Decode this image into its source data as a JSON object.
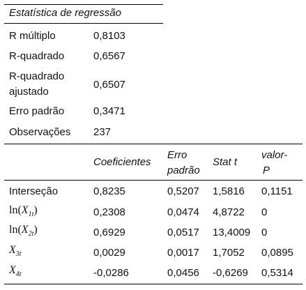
{
  "regression_stats": {
    "title": "Estatística de regressão",
    "rows": [
      {
        "label": "R múltiplo",
        "value": "0,8103"
      },
      {
        "label": "R-quadrado",
        "value": "0,6567"
      },
      {
        "label_line1": "R-quadrado",
        "label_line2": "ajustado",
        "value": "0,6507"
      },
      {
        "label": "Erro padrão",
        "value": "0,3471"
      },
      {
        "label": "Observações",
        "value": "237"
      }
    ]
  },
  "coef_table": {
    "headers": {
      "coef": "Coeficientes",
      "se_line1": "Erro",
      "se_line2": "padrão",
      "t": "Stat t",
      "p_line1": "valor-",
      "p_line2": "P"
    },
    "rows": [
      {
        "var_text": "Interseção",
        "coef": "0,8235",
        "se": "0,5207",
        "t": "1,5816",
        "p": "0,1151"
      },
      {
        "var_func": "ln",
        "var_base": "X",
        "var_sub": "1t",
        "coef": "0,2308",
        "se": "0,0474",
        "t": "4,8722",
        "p": "0"
      },
      {
        "var_func": "ln",
        "var_base": "X",
        "var_sub": "2t",
        "coef": "0,6929",
        "se": "0,0517",
        "t": "13,4009",
        "p": "0"
      },
      {
        "var_base": "X",
        "var_sub": "3t",
        "coef": "0,0029",
        "se": "0,0017",
        "t": "1,7052",
        "p": "0,0895"
      },
      {
        "var_base": "X",
        "var_sub": "4t",
        "coef": "-0,0286",
        "se": "0,0456",
        "t": "-0,6269",
        "p": "0,5314"
      }
    ]
  }
}
